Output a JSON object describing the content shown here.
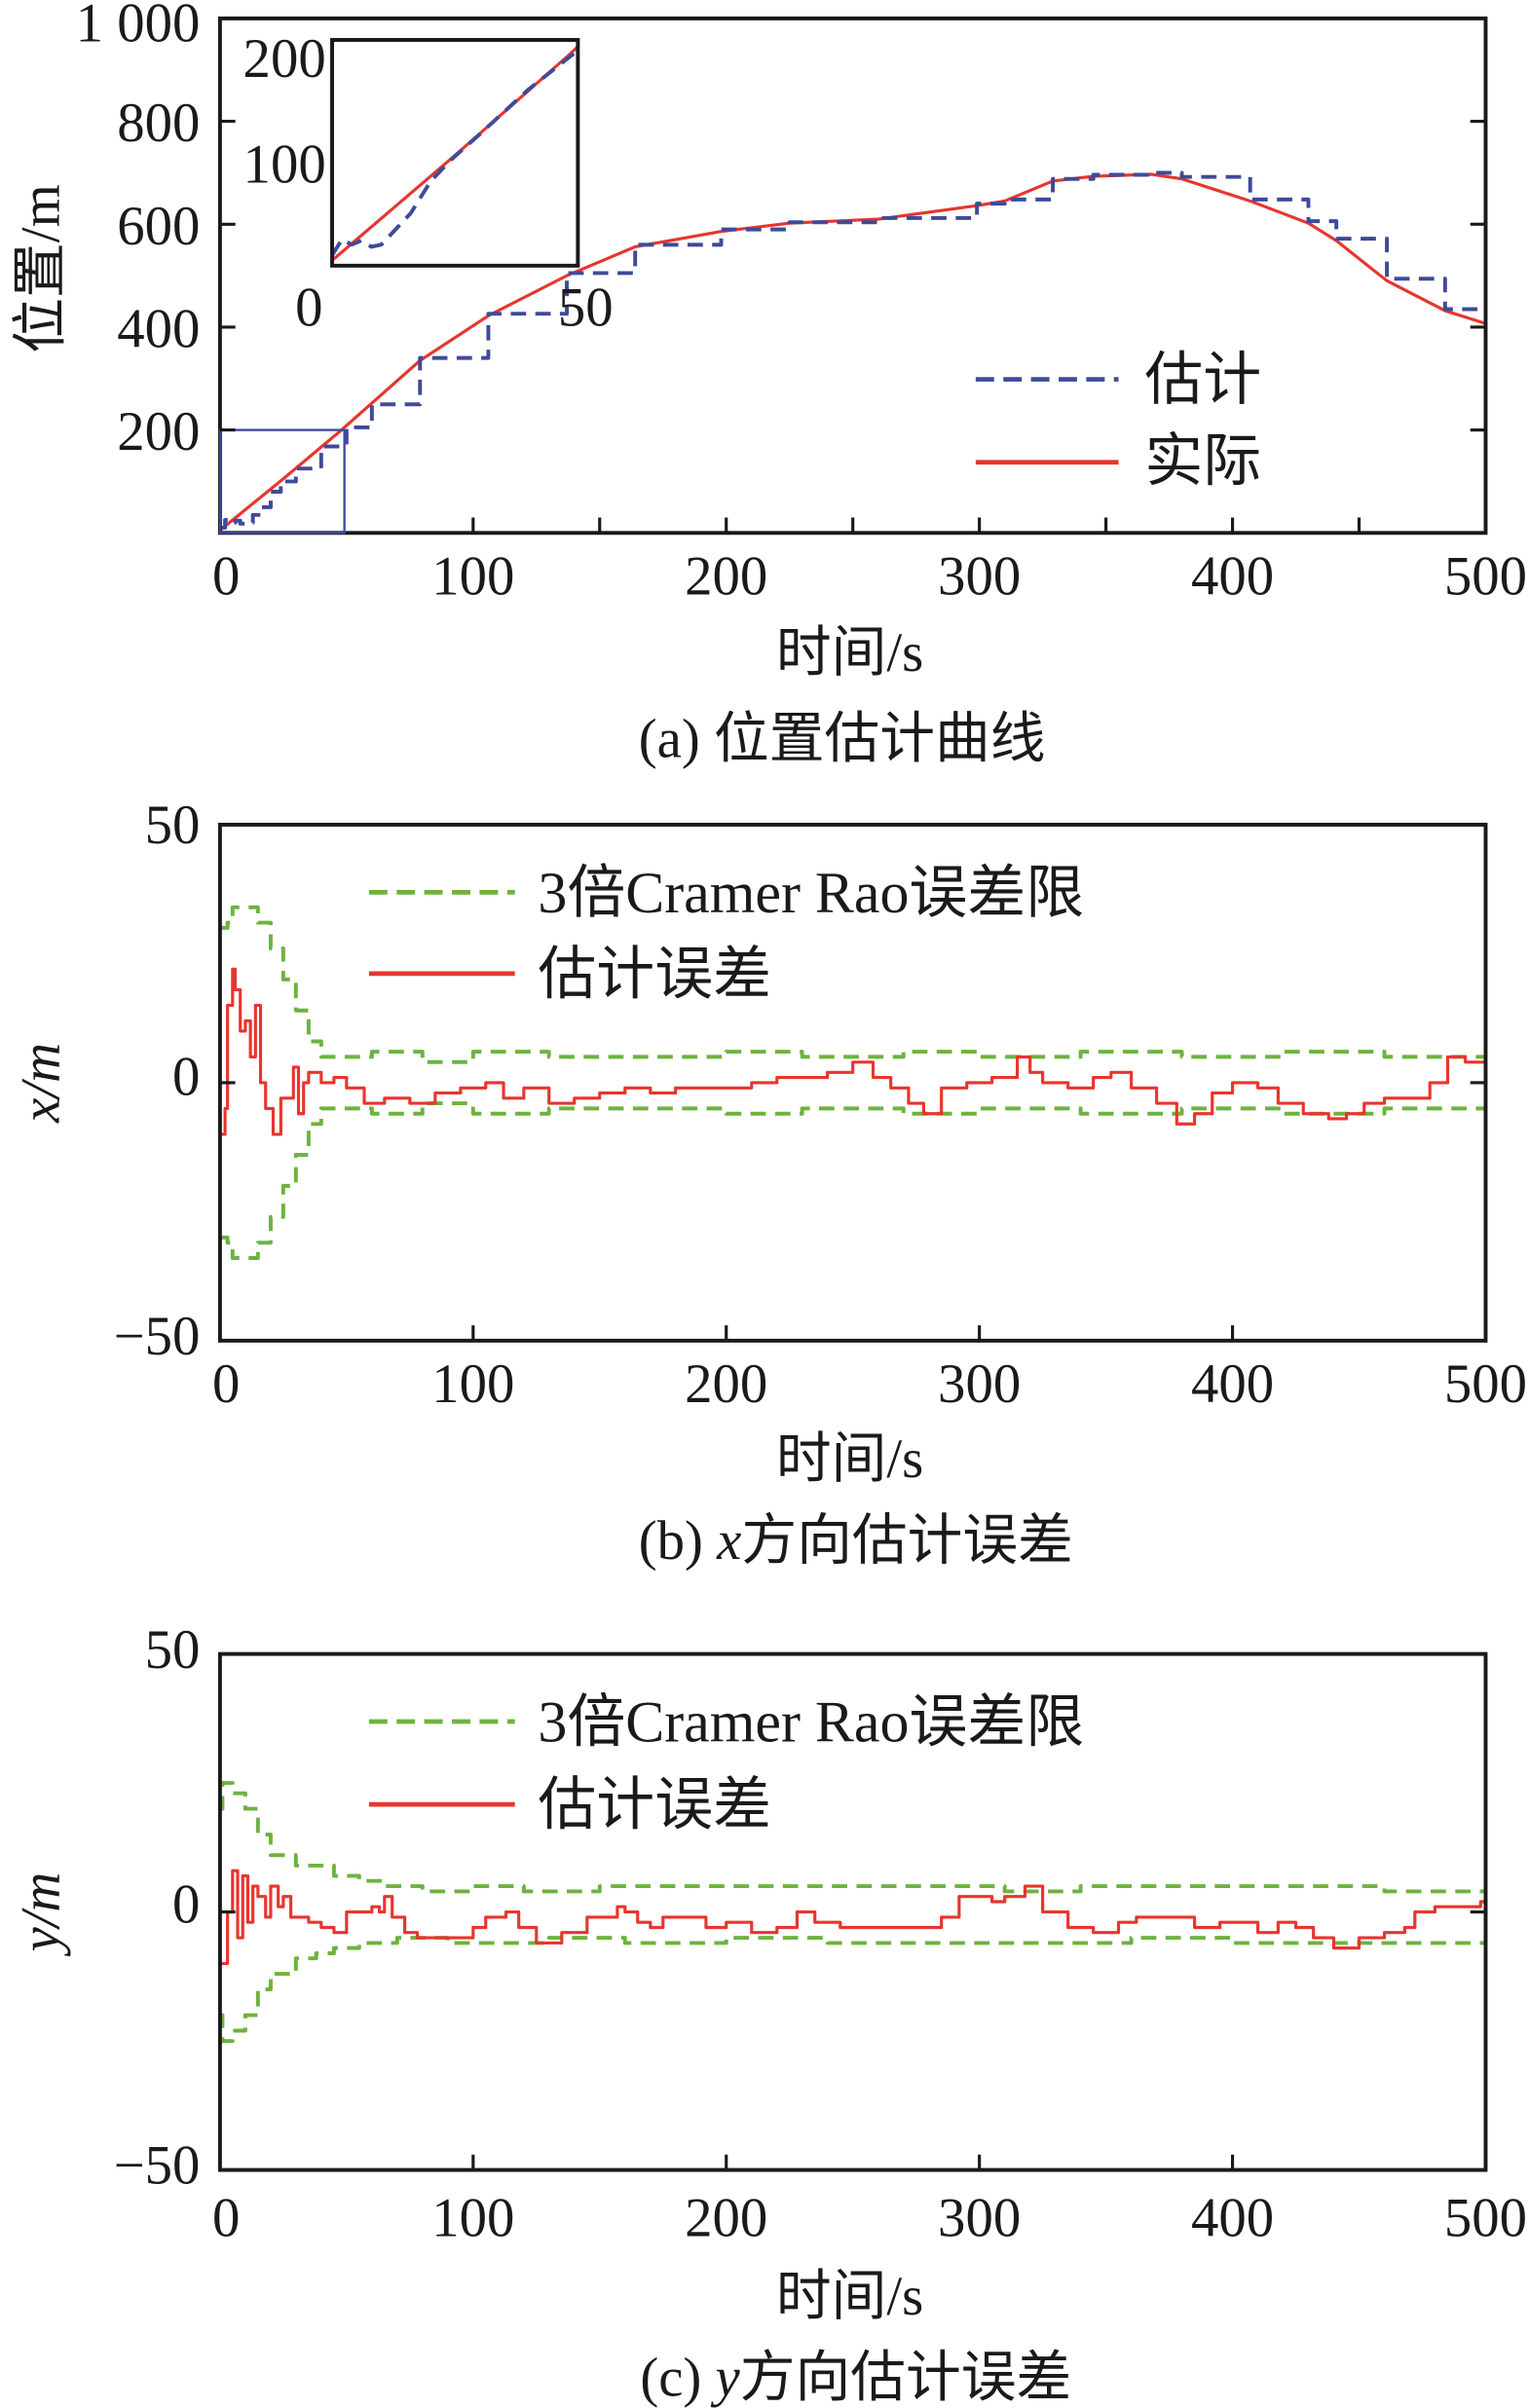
{
  "colors": {
    "estimate": "#3f4a9a",
    "actual": "#e8352e",
    "bound": "#6db33f",
    "error": "#e8352e"
  },
  "chart_data": [
    {
      "type": "line",
      "caption": "(a) 位置估计曲线",
      "xlabel": "时间/s",
      "ylabel": "位置/m",
      "xlim": [
        0,
        500
      ],
      "ylim": [
        0,
        1000
      ],
      "xticks": [
        "0",
        "100",
        "200",
        "300",
        "400",
        "500"
      ],
      "yticks": [
        "1 000",
        "800",
        "600",
        "400",
        "200"
      ],
      "legend": {
        "placement": "right",
        "entries": [
          "估计",
          "实际"
        ]
      },
      "series": [
        {
          "name": "估计",
          "style": "dashed",
          "x": [
            0,
            2,
            4,
            6,
            8,
            10,
            13,
            16,
            20,
            24,
            30,
            40,
            50,
            60,
            79,
            106,
            137,
            164,
            198,
            225,
            260,
            299,
            310,
            329,
            345,
            368,
            380,
            407,
            430,
            441,
            461,
            484,
            500
          ],
          "y": [
            10,
            25,
            20,
            24,
            18,
            20,
            35,
            50,
            80,
            100,
            125,
            168,
            205,
            250,
            340,
            426,
            505,
            560,
            590,
            604,
            612,
            640,
            648,
            688,
            696,
            700,
            692,
            648,
            606,
            572,
            494,
            435,
            405
          ]
        },
        {
          "name": "实际",
          "style": "solid",
          "x": [
            0,
            25,
            48,
            79,
            106,
            137,
            164,
            198,
            225,
            260,
            299,
            310,
            329,
            345,
            368,
            380,
            407,
            430,
            441,
            461,
            484,
            500
          ],
          "y": [
            5,
            105,
            200,
            335,
            422,
            500,
            556,
            586,
            602,
            610,
            636,
            645,
            684,
            693,
            697,
            688,
            645,
            602,
            568,
            490,
            432,
            407
          ]
        }
      ],
      "inset": {
        "xlim": [
          0,
          50
        ],
        "ylim": [
          0,
          215
        ],
        "xticks": [
          "0",
          "50"
        ],
        "yticks": [
          "200",
          "100"
        ]
      }
    },
    {
      "type": "line",
      "caption_prefix": "(b) ",
      "caption_var": "x",
      "caption_rest": "方向估计误差",
      "xlabel": "时间/s",
      "ylabel": "x/m",
      "xlim": [
        0,
        500
      ],
      "ylim": [
        -50,
        50
      ],
      "xticks": [
        "0",
        "100",
        "200",
        "300",
        "400",
        "500"
      ],
      "yticks": [
        "50",
        "0",
        "−50"
      ],
      "legend": {
        "placement": "top-left",
        "entries": [
          "3倍Cramer Rao误差限",
          "估计误差"
        ]
      },
      "series": [
        {
          "name": "3倍Cramer Rao误差限 (upper)",
          "style": "dashed",
          "x": [
            0,
            3,
            5,
            10,
            15,
            20,
            25,
            30,
            35,
            40,
            60,
            80,
            100,
            130,
            160,
            200,
            230,
            270,
            300,
            340,
            380,
            420,
            460,
            500
          ],
          "y": [
            30,
            31,
            34,
            34,
            31,
            26,
            20,
            14,
            8,
            5,
            6,
            4,
            6,
            5,
            5,
            6,
            5,
            6,
            5,
            6,
            5,
            6,
            5,
            6
          ]
        },
        {
          "name": "3倍Cramer Rao误差限 (lower)",
          "style": "dashed",
          "x": [
            0,
            3,
            5,
            10,
            15,
            20,
            25,
            30,
            35,
            40,
            60,
            80,
            100,
            130,
            160,
            200,
            230,
            270,
            300,
            340,
            380,
            420,
            460,
            500
          ],
          "y": [
            -30,
            -31,
            -34,
            -34,
            -31,
            -26,
            -20,
            -14,
            -8,
            -5,
            -6,
            -4,
            -6,
            -5,
            -5,
            -6,
            -5,
            -6,
            -5,
            -6,
            -5,
            -6,
            -5,
            -6
          ]
        },
        {
          "name": "估计误差",
          "style": "solid",
          "x": [
            0,
            2,
            3,
            5,
            6,
            8,
            10,
            12,
            14,
            16,
            18,
            21,
            24,
            27,
            29,
            31,
            33,
            35,
            40,
            45,
            50,
            57,
            65,
            75,
            85,
            95,
            105,
            112,
            120,
            130,
            140,
            150,
            160,
            170,
            180,
            190,
            200,
            210,
            220,
            230,
            240,
            250,
            258,
            265,
            272,
            278,
            285,
            295,
            305,
            315,
            320,
            325,
            335,
            345,
            352,
            360,
            370,
            378,
            385,
            392,
            400,
            410,
            418,
            428,
            438,
            445,
            452,
            460,
            470,
            478,
            485,
            492,
            500
          ],
          "y": [
            -10,
            -5,
            15,
            22,
            18,
            10,
            12,
            5,
            15,
            0,
            -5,
            -10,
            -3,
            -3,
            3,
            -6,
            0,
            2,
            0,
            1,
            -1,
            -4,
            -3,
            -4,
            -2,
            -1,
            0,
            -3,
            -1,
            -4,
            -3,
            -2,
            -1,
            -2,
            -1,
            -1,
            -1,
            0,
            1,
            1,
            2,
            4,
            1,
            -1,
            -4,
            -6,
            -1,
            0,
            1,
            5,
            2,
            0,
            -1,
            1,
            2,
            -1,
            -4,
            -8,
            -6,
            -2,
            0,
            -1,
            -4,
            -6,
            -7,
            -6,
            -4,
            -3,
            -3,
            0,
            5,
            4,
            5
          ]
        }
      ]
    },
    {
      "type": "line",
      "caption_prefix": "(c) ",
      "caption_var": "y",
      "caption_rest": "方向估计误差",
      "xlabel": "时间/s",
      "ylabel": "y/m",
      "xlim": [
        0,
        500
      ],
      "ylim": [
        -50,
        50
      ],
      "xticks": [
        "0",
        "100",
        "200",
        "300",
        "400",
        "500"
      ],
      "yticks": [
        "50",
        "0",
        "−50"
      ],
      "legend": {
        "placement": "top-left",
        "entries": [
          "3倍Cramer Rao误差限",
          "估计误差"
        ]
      },
      "series": [
        {
          "name": "3倍Cramer Rao误差限 (upper)",
          "style": "dashed",
          "x": [
            0,
            1,
            5,
            10,
            15,
            20,
            30,
            38,
            45,
            55,
            65,
            80,
            100,
            120,
            150,
            190,
            220,
            250,
            290,
            310,
            340,
            380,
            420,
            460,
            500
          ],
          "y": [
            20,
            25,
            23,
            20,
            15,
            11,
            9,
            9,
            7,
            6,
            5,
            4,
            5,
            4,
            5,
            5,
            5,
            5,
            5,
            4,
            5,
            5,
            5,
            4,
            5
          ]
        },
        {
          "name": "3倍Cramer Rao误差限 (lower)",
          "style": "dashed",
          "x": [
            0,
            1,
            5,
            10,
            15,
            20,
            30,
            38,
            45,
            55,
            70,
            90,
            110,
            130,
            160,
            200,
            240,
            280,
            320,
            360,
            400,
            440,
            470,
            500
          ],
          "y": [
            -20,
            -25,
            -23,
            -20,
            -15,
            -12,
            -9,
            -8,
            -7,
            -6,
            -5,
            -6,
            -6,
            -5,
            -6,
            -5,
            -6,
            -6,
            -6,
            -5,
            -6,
            -6,
            -6,
            -6
          ]
        },
        {
          "name": "估计误差",
          "style": "solid",
          "x": [
            0,
            2,
            3,
            5,
            7,
            9,
            11,
            13,
            15,
            18,
            20,
            23,
            25,
            28,
            32,
            35,
            40,
            45,
            50,
            55,
            60,
            63,
            65,
            68,
            73,
            78,
            90,
            100,
            105,
            113,
            118,
            125,
            135,
            145,
            152,
            157,
            160,
            165,
            170,
            175,
            185,
            192,
            200,
            210,
            220,
            228,
            235,
            245,
            255,
            265,
            275,
            285,
            292,
            300,
            305,
            310,
            318,
            325,
            335,
            345,
            355,
            362,
            375,
            385,
            395,
            405,
            410,
            418,
            425,
            432,
            440,
            450,
            460,
            468,
            472,
            480,
            490,
            498,
            500
          ],
          "y": [
            -10,
            -10,
            0,
            8,
            -5,
            7,
            -2,
            5,
            3,
            -1,
            5,
            1,
            3,
            -1,
            -1,
            -2,
            -3,
            -4,
            0,
            0,
            1,
            0,
            3,
            -1,
            -4,
            -5,
            -5,
            -3,
            -1,
            0,
            -3,
            -6,
            -4,
            -1,
            -1,
            1,
            0,
            -2,
            -3,
            -1,
            -1,
            -3,
            -2,
            -4,
            -3,
            0,
            -2,
            -3,
            -3,
            -3,
            -3,
            -1,
            3,
            3,
            2,
            3,
            5,
            0,
            -3,
            -4,
            -2,
            -1,
            -1,
            -3,
            -2,
            -2,
            -4,
            -2,
            -3,
            -5,
            -7,
            -5,
            -4,
            -3,
            0,
            1,
            1,
            2,
            4
          ]
        }
      ]
    }
  ]
}
